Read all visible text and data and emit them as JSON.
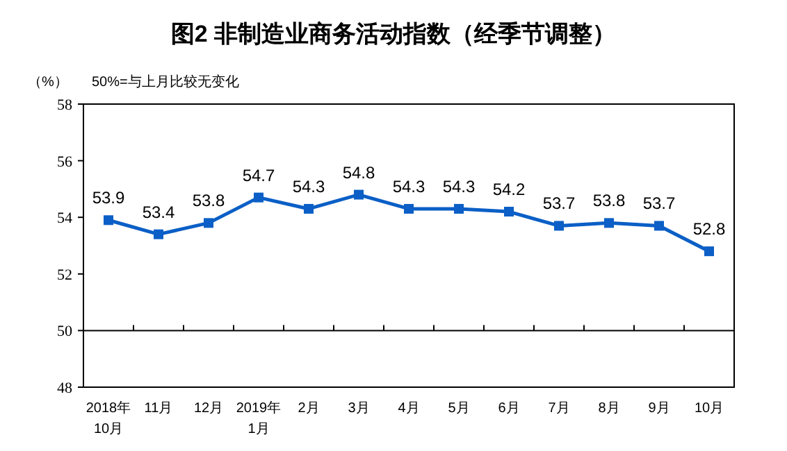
{
  "chart_data": {
    "type": "line",
    "title": "图2  非制造业商务活动指数（经季节调整）",
    "ylabel": "（%）",
    "annotations": [
      "50%=与上月比较无变化"
    ],
    "categories": [
      "2018年\n10月",
      "11月",
      "12月",
      "2019年\n1月",
      "2月",
      "3月",
      "4月",
      "5月",
      "6月",
      "7月",
      "8月",
      "9月",
      "10月"
    ],
    "series": [
      {
        "color": "#0b5fc6",
        "values": [
          53.9,
          53.4,
          53.8,
          54.7,
          54.3,
          54.8,
          54.3,
          54.3,
          54.2,
          53.7,
          53.8,
          53.7,
          52.8
        ]
      }
    ],
    "ylim": [
      48,
      58
    ],
    "yticks": [
      48,
      50,
      52,
      54,
      56,
      58
    ],
    "ref_lines": [
      {
        "axis": "y",
        "value": 50,
        "color": "#000000"
      }
    ],
    "data_labels": true,
    "marker": "square",
    "line_style": "solid",
    "grid": false
  }
}
